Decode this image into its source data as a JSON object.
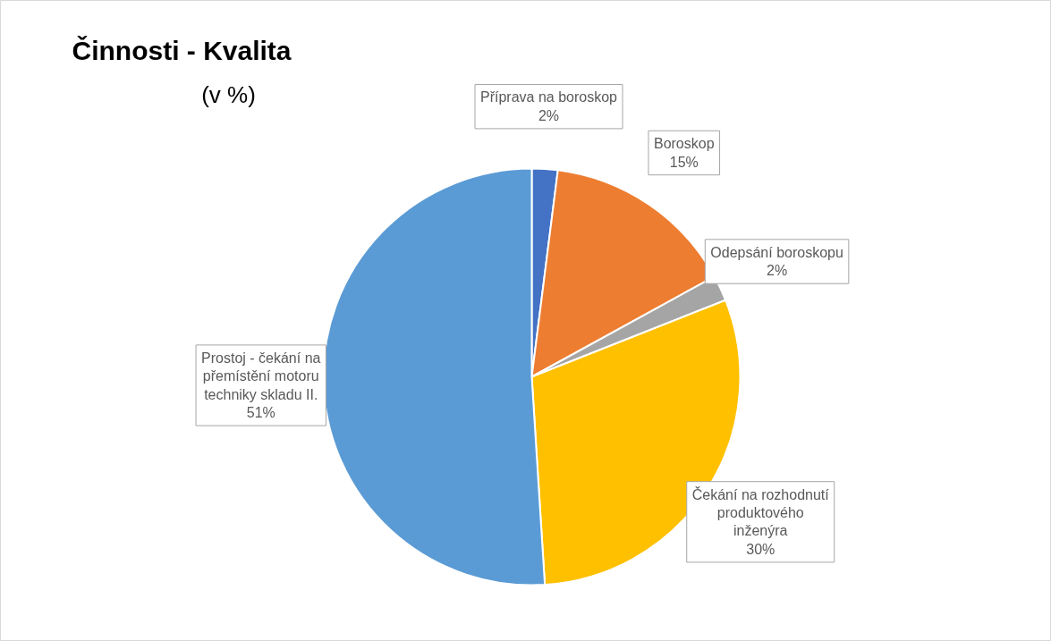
{
  "chart_data": {
    "type": "pie",
    "title": "Činnosti - Kvalita",
    "subtitle": "(v %)",
    "categories": [
      "Příprava na boroskop",
      "Boroskop",
      "Odepsání boroskopu",
      "Čekání na rozhodnutí produktového inženýra",
      "Prostoj - čekání na přemístění motoru techniky skladu II."
    ],
    "values": [
      2,
      15,
      2,
      30,
      51
    ],
    "colors": [
      "#4472c4",
      "#ed7d31",
      "#a5a5a5",
      "#ffc000",
      "#5b9bd5"
    ],
    "value_labels": [
      "2%",
      "15%",
      "2%",
      "30%",
      "51%"
    ]
  }
}
